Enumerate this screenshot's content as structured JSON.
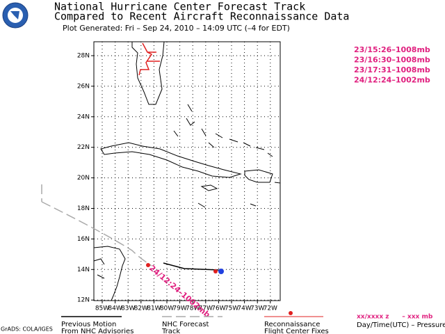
{
  "header": {
    "title_line1": "National Hurricane Center Forecast Track",
    "title_line2": "Compared to Recent Aircraft Reconnaissance Data",
    "plot_generated": "Plot Generated:  Fri – Sep 24, 2010 – 14:09 UTC   (–4 for EDT)"
  },
  "map": {
    "latitude_labels": [
      "28N",
      "26N",
      "24N",
      "22N",
      "20N",
      "18N",
      "16N",
      "14N",
      "12N"
    ],
    "longitude_labels": [
      "85W",
      "84W",
      "83W",
      "82W",
      "81W",
      "80W",
      "79W",
      "78W",
      "77W",
      "76W",
      "75W",
      "74W",
      "73W",
      "72W"
    ],
    "track_label": "24/12:24–1002mb"
  },
  "fixes": [
    "23/15:26–1008mb",
    "23/16:30–1008mb",
    "23/17:31–1008mb",
    "24/12:24–1002mb"
  ],
  "legend": {
    "previous_motion": [
      "Previous Motion",
      "From NHC Advisories"
    ],
    "forecast_track": [
      "NHC Forecast",
      "Track"
    ],
    "recon": [
      "Reconnaissance",
      "Flight Center Fixes"
    ],
    "format": "xx/xxxx z      – xxx mb",
    "format_caption": "Day/Time(UTC) – Pressure"
  },
  "credit": "GrADS: COLA/IGES"
}
